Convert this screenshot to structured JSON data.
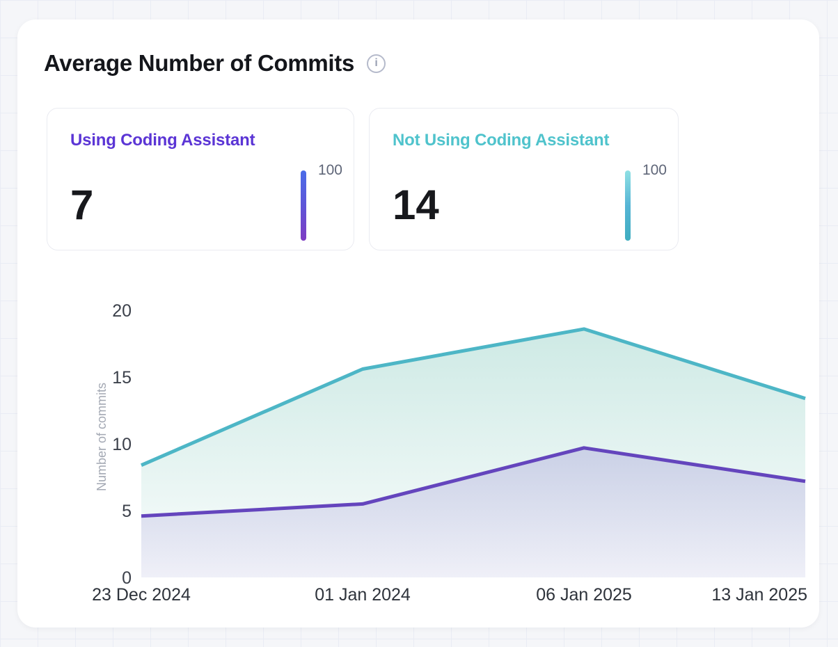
{
  "header": {
    "title": "Average Number of Commits",
    "info_glyph": "i"
  },
  "stat_cards": [
    {
      "label": "Using Coding Assistant",
      "value": "7",
      "scale_max": "100",
      "accent": "#5b35d5",
      "bar_gradient": [
        "#4a6ce8",
        "#5e55d8",
        "#7e3cc3"
      ]
    },
    {
      "label": "Not Using Coding Assistant",
      "value": "14",
      "scale_max": "100",
      "accent": "#4fc3cc",
      "bar_gradient": [
        "#8fe0e4",
        "#56b5d5",
        "#3fadc0"
      ]
    }
  ],
  "chart_data": {
    "type": "area",
    "title": "Average Number of Commits",
    "x": [
      "23 Dec 2024",
      "01 Jan 2024",
      "06 Jan 2025",
      "13 Jan 2025"
    ],
    "series": [
      {
        "name": "Not Using Coding Assistant",
        "color": "#4db6c6",
        "fill": "#5cb8a8",
        "fill_alpha_top": 0.3,
        "fill_alpha_bottom": 0.03,
        "values": [
          8.4,
          15.6,
          18.6,
          13.4
        ]
      },
      {
        "name": "Using Coding Assistant",
        "color": "#6445bd",
        "fill": "#6747c0",
        "fill_alpha_top": 0.2,
        "fill_alpha_bottom": 0.07,
        "values": [
          4.6,
          5.5,
          9.7,
          7.2
        ]
      }
    ],
    "xlabel": "",
    "ylabel": "Number of commits",
    "yticks": [
      0,
      5,
      10,
      15,
      20
    ],
    "ylim": [
      0,
      20
    ],
    "grid": false,
    "legend": "none",
    "text_colors": {
      "tick": "#3c414b",
      "xlabel": "#2e333b",
      "ylabel": "#a3a8b3"
    }
  }
}
